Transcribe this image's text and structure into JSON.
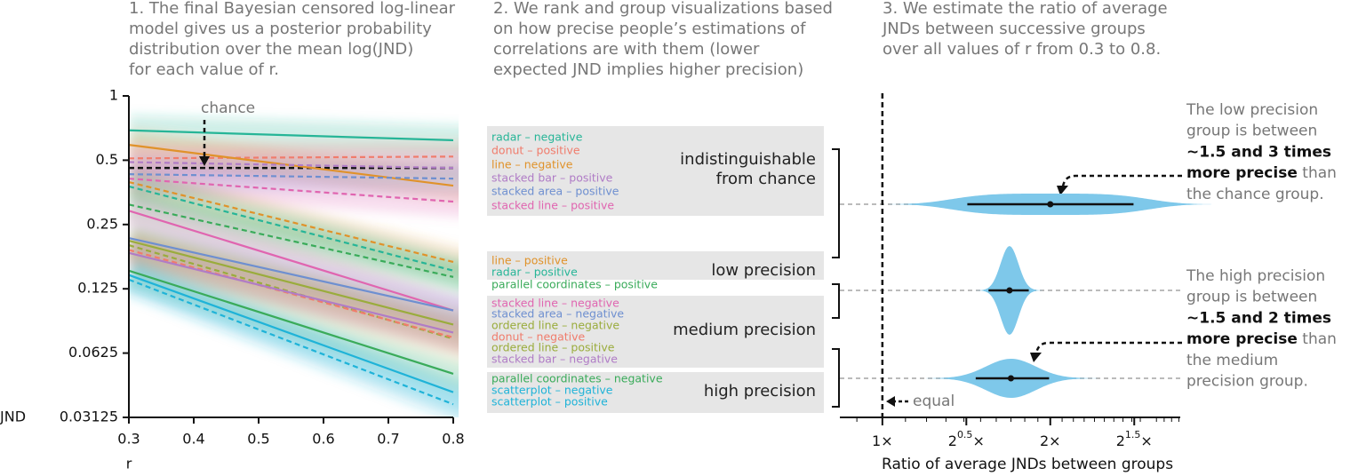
{
  "captions": [
    [
      "1. The final Bayesian censored log-linear",
      "model gives us a posterior probability",
      "distribution over the mean log(JND)",
      "for each value of r."
    ],
    [
      "2. We rank and group visualizations based",
      "on how precise people’s estimations of",
      "correlations are with them (lower",
      "expected JND implies higher precision)"
    ],
    [
      "3. We estimate the ratio of average",
      "JNDs between successive groups",
      "over all values of r from 0.3 to 0.8."
    ]
  ],
  "groups": [
    [
      "indistinguishable",
      "from chance"
    ],
    [
      "low precision"
    ],
    [
      "medium precision"
    ],
    [
      "high precision"
    ]
  ],
  "notes": [
    [
      [
        {
          "text": "The low precision"
        }
      ],
      [
        {
          "text": "group is between"
        }
      ],
      [
        {
          "text": "~1.5 and 3 times",
          "bold": true
        }
      ],
      [
        {
          "text": "more precise",
          "bold": true
        },
        {
          "text": " than"
        }
      ],
      [
        {
          "text": "the chance group."
        }
      ]
    ],
    [
      [
        {
          "text": "The high precision"
        }
      ],
      [
        {
          "text": "group is between"
        }
      ],
      [
        {
          "text": "~1.5 and 2 times",
          "bold": true
        }
      ],
      [
        {
          "text": "more precise",
          "bold": true
        },
        {
          "text": " than"
        }
      ],
      [
        {
          "text": "the medium"
        }
      ],
      [
        {
          "text": "precision group."
        }
      ]
    ]
  ],
  "chart_data": [
    {
      "type": "line",
      "x_label": "r",
      "y_label": "JND",
      "y_scale": "log2",
      "x": [
        0.3,
        0.8
      ],
      "xlim": [
        0.3,
        0.8
      ],
      "xticks": [
        0.3,
        0.4,
        0.5,
        0.6,
        0.7,
        0.8
      ],
      "ylim": [
        0.03125,
        1
      ],
      "yticks": [
        1,
        0.5,
        0.25,
        0.125,
        0.0625,
        0.03125
      ],
      "annotation": {
        "text": "chance",
        "value": 0.46
      },
      "series": [
        {
          "name": "radar – negative",
          "color": "#26b597",
          "dashed": false,
          "values": [
            0.69,
            0.62
          ]
        },
        {
          "name": "donut – positive",
          "color": "#f07c6c",
          "dashed": true,
          "values": [
            0.51,
            0.52
          ]
        },
        {
          "name": "line – negative",
          "color": "#e0922a",
          "dashed": false,
          "values": [
            0.59,
            0.38
          ]
        },
        {
          "name": "stacked bar – positive",
          "color": "#b07cc6",
          "dashed": true,
          "values": [
            0.49,
            0.46
          ]
        },
        {
          "name": "stacked area – positive",
          "color": "#6e8fd0",
          "dashed": true,
          "values": [
            0.43,
            0.41
          ]
        },
        {
          "name": "stacked line – positive",
          "color": "#e065b0",
          "dashed": true,
          "values": [
            0.41,
            0.32
          ]
        },
        {
          "name": "line – positive",
          "color": "#e0922a",
          "dashed": true,
          "values": [
            0.395,
            0.167
          ]
        },
        {
          "name": "radar – positive",
          "color": "#26b597",
          "dashed": true,
          "values": [
            0.377,
            0.152
          ]
        },
        {
          "name": "parallel coordinates – positive",
          "color": "#3aab5a",
          "dashed": true,
          "values": [
            0.31,
            0.142
          ]
        },
        {
          "name": "stacked line – negative",
          "color": "#e065b0",
          "dashed": false,
          "values": [
            0.29,
            0.099
          ]
        },
        {
          "name": "stacked area – negative",
          "color": "#6e8fd0",
          "dashed": false,
          "values": [
            0.216,
            0.099
          ]
        },
        {
          "name": "ordered line – negative",
          "color": "#9aac3c",
          "dashed": true,
          "values": [
            0.2,
            0.073
          ]
        },
        {
          "name": "donut – negative",
          "color": "#f07c6c",
          "dashed": true,
          "values": [
            0.19,
            0.074
          ]
        },
        {
          "name": "ordered line – positive",
          "color": "#9aac3c",
          "dashed": false,
          "values": [
            0.21,
            0.085
          ]
        },
        {
          "name": "stacked bar – negative",
          "color": "#b07cc6",
          "dashed": false,
          "values": [
            0.184,
            0.078
          ]
        },
        {
          "name": "parallel coordinates – negative",
          "color": "#3aab5a",
          "dashed": false,
          "values": [
            0.152,
            0.05
          ]
        },
        {
          "name": "scatterplot – negative",
          "color": "#1fb3d8",
          "dashed": false,
          "values": [
            0.145,
            0.041
          ]
        },
        {
          "name": "scatterplot – positive",
          "color": "#1fb3d8",
          "dashed": true,
          "values": [
            0.138,
            0.036
          ]
        }
      ]
    },
    {
      "type": "violin",
      "x_label": "Ratio of average JNDs between groups",
      "x_scale": "log2",
      "color": "#7ec8ea",
      "xlim": [
        0.839,
        3.42
      ],
      "xticks": [
        {
          "value": 1,
          "label": "1×"
        },
        {
          "value": 1.41421,
          "label": "2",
          "exponent": "0.5",
          "suffix": "×"
        },
        {
          "value": 2,
          "label": "2×"
        },
        {
          "value": 2.82843,
          "label": "2",
          "exponent": "1.5",
          "suffix": "×"
        }
      ],
      "reference": {
        "text": "equal",
        "value": 1
      },
      "comparisons": [
        {
          "median": 2.0,
          "interval": [
            1.42,
            2.82
          ]
        },
        {
          "median": 1.69,
          "interval": [
            1.55,
            1.83
          ]
        },
        {
          "median": 1.7,
          "interval": [
            1.47,
            1.99
          ]
        }
      ]
    }
  ]
}
